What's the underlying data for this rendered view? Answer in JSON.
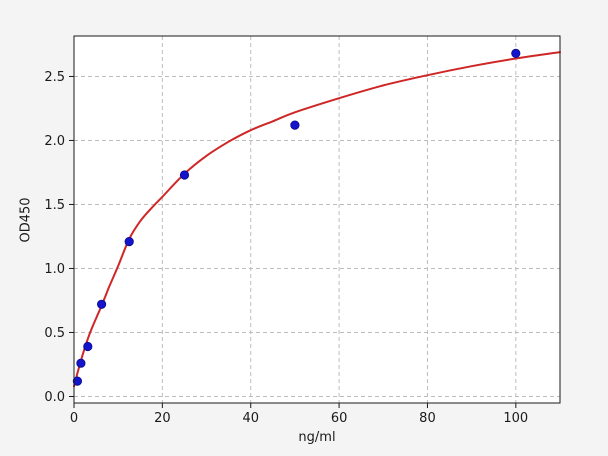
{
  "figure": {
    "background": "#f4f4f5",
    "plot_background": "#ffffff"
  },
  "chart_data": {
    "type": "scatter",
    "title": "",
    "xlabel": "ng/ml",
    "ylabel": "OD450",
    "xlim": [
      0,
      110
    ],
    "ylim": [
      -0.051,
      2.816
    ],
    "x_ticks": [
      0,
      20,
      40,
      60,
      80,
      100
    ],
    "x_tick_labels": [
      "0",
      "20",
      "40",
      "60",
      "80",
      "100"
    ],
    "y_ticks": [
      0,
      0.5,
      1,
      1.5,
      2,
      2.5
    ],
    "y_tick_labels": [
      "0.0",
      "0.5",
      "1.0",
      "1.5",
      "2.0",
      "2.5"
    ],
    "grid": true,
    "grid_style": "dashed",
    "legend_position": "none",
    "colors": {
      "plot_bg": "#ffffff",
      "grid": "#bdbdbd",
      "spine": "#1a1a1a",
      "marker": "#1414cc",
      "marker_edge": "#0a0a8c",
      "line": "#cf2626",
      "tick_text": "#1a1a1a"
    },
    "series": [
      {
        "name": "standard-points",
        "type": "scatter",
        "color": "#1414cc",
        "x": [
          0.78,
          1.56,
          3.12,
          6.25,
          12.5,
          25,
          50,
          100
        ],
        "y": [
          0.12,
          0.26,
          0.39,
          0.72,
          1.21,
          1.73,
          2.12,
          2.68
        ]
      },
      {
        "name": "fit-curve",
        "type": "line",
        "color": "#cf2626",
        "x": [
          0,
          1,
          2,
          3.12,
          4,
          5,
          6.25,
          8,
          10,
          12.5,
          15,
          17.5,
          20,
          25,
          30,
          35,
          40,
          45,
          50,
          60,
          70,
          80,
          90,
          100,
          110
        ],
        "y": [
          0.08,
          0.21,
          0.33,
          0.45,
          0.53,
          0.61,
          0.71,
          0.86,
          1.02,
          1.23,
          1.37,
          1.47,
          1.56,
          1.74,
          1.88,
          1.99,
          2.08,
          2.15,
          2.22,
          2.33,
          2.43,
          2.51,
          2.58,
          2.64,
          2.69
        ]
      }
    ]
  }
}
